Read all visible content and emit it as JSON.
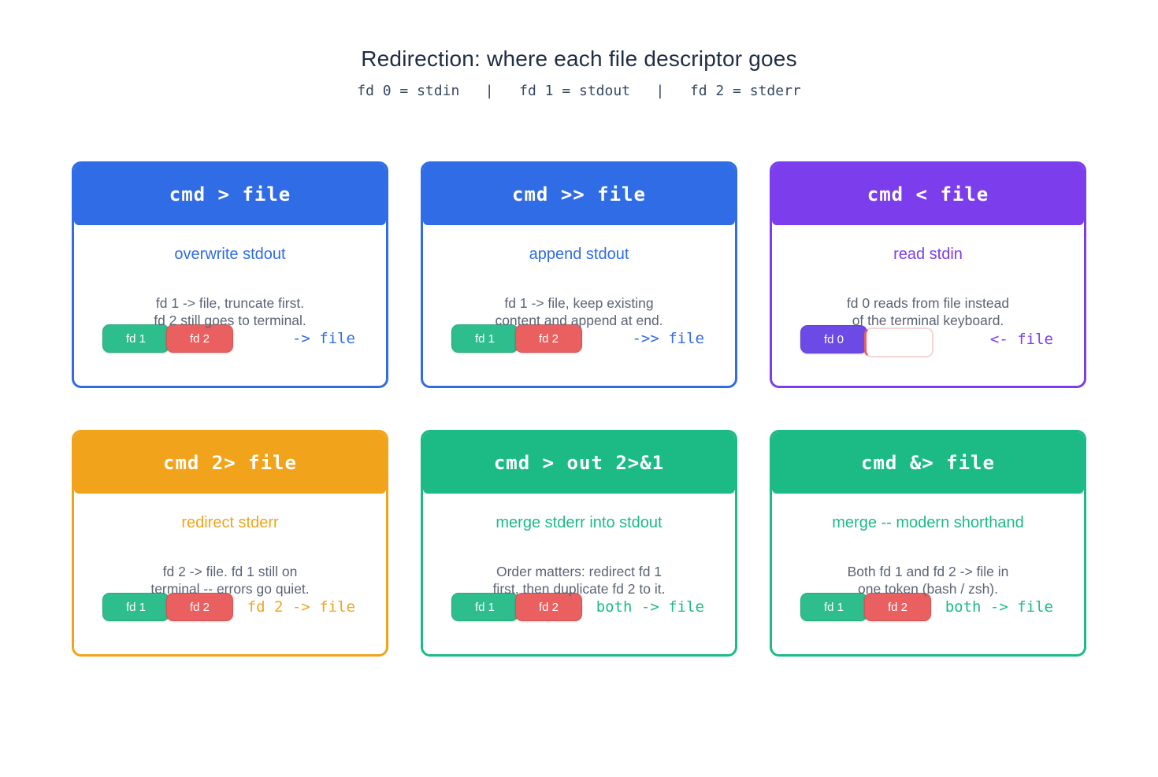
{
  "header": {
    "title": "Redirection: where each file descriptor goes",
    "subtitle": "fd 0 = stdin   |   fd 1 = stdout   |   fd 2 = stderr"
  },
  "palette": {
    "blue": "#2F6CE5",
    "purple": "#7C3EED",
    "orange": "#F1A41B",
    "green": "#1CBB85",
    "badge_green": "#2EBD8C",
    "badge_red": "#EA5F5F",
    "badge_purple": "#6C4AE6",
    "ghost_border": "#F7D4D4",
    "title_text": "#1F2D45",
    "desc_text": "#5B6474"
  },
  "cards": [
    {
      "command": "cmd > file",
      "theme": "blue",
      "subtitle": "overwrite stdout",
      "desc1": "fd 1 -> file, truncate first.",
      "desc2": "fd 2 still goes to terminal.",
      "badges": [
        {
          "label": "fd 1",
          "color": "green"
        },
        {
          "label": "fd 2",
          "color": "red"
        }
      ],
      "arrow": "-> file"
    },
    {
      "command": "cmd >> file",
      "theme": "blue",
      "subtitle": "append stdout",
      "desc1": "fd 1 -> file, keep existing",
      "desc2": "content and append at end.",
      "badges": [
        {
          "label": "fd 1",
          "color": "green"
        },
        {
          "label": "fd 2",
          "color": "red"
        }
      ],
      "arrow": "->> file"
    },
    {
      "command": "cmd < file",
      "theme": "purple",
      "subtitle": "read stdin",
      "desc1": "fd 0 reads from file instead",
      "desc2": "of the terminal keyboard.",
      "badges": [
        {
          "label": "fd 0",
          "color": "purple"
        },
        {
          "label": "",
          "color": "ghost"
        }
      ],
      "arrow": "<- file"
    },
    {
      "command": "cmd 2> file",
      "theme": "orange",
      "subtitle": "redirect stderr",
      "desc1": "fd 2 -> file. fd 1 still on",
      "desc2": "terminal -- errors go quiet.",
      "badges": [
        {
          "label": "fd 1",
          "color": "green"
        },
        {
          "label": "fd 2",
          "color": "red"
        }
      ],
      "arrow": "fd 2 -> file"
    },
    {
      "command": "cmd > out 2>&1",
      "theme": "green",
      "subtitle": "merge stderr into stdout",
      "desc1": "Order matters: redirect fd 1",
      "desc2": "first, then duplicate fd 2 to it.",
      "badges": [
        {
          "label": "fd 1",
          "color": "green"
        },
        {
          "label": "fd 2",
          "color": "red"
        }
      ],
      "arrow": "both -> file"
    },
    {
      "command": "cmd &> file",
      "theme": "green",
      "subtitle": "merge -- modern shorthand",
      "desc1": "Both fd 1 and fd 2 -> file in",
      "desc2": "one token (bash / zsh).",
      "badges": [
        {
          "label": "fd 1",
          "color": "green"
        },
        {
          "label": "fd 2",
          "color": "red"
        }
      ],
      "arrow": "both -> file"
    }
  ]
}
